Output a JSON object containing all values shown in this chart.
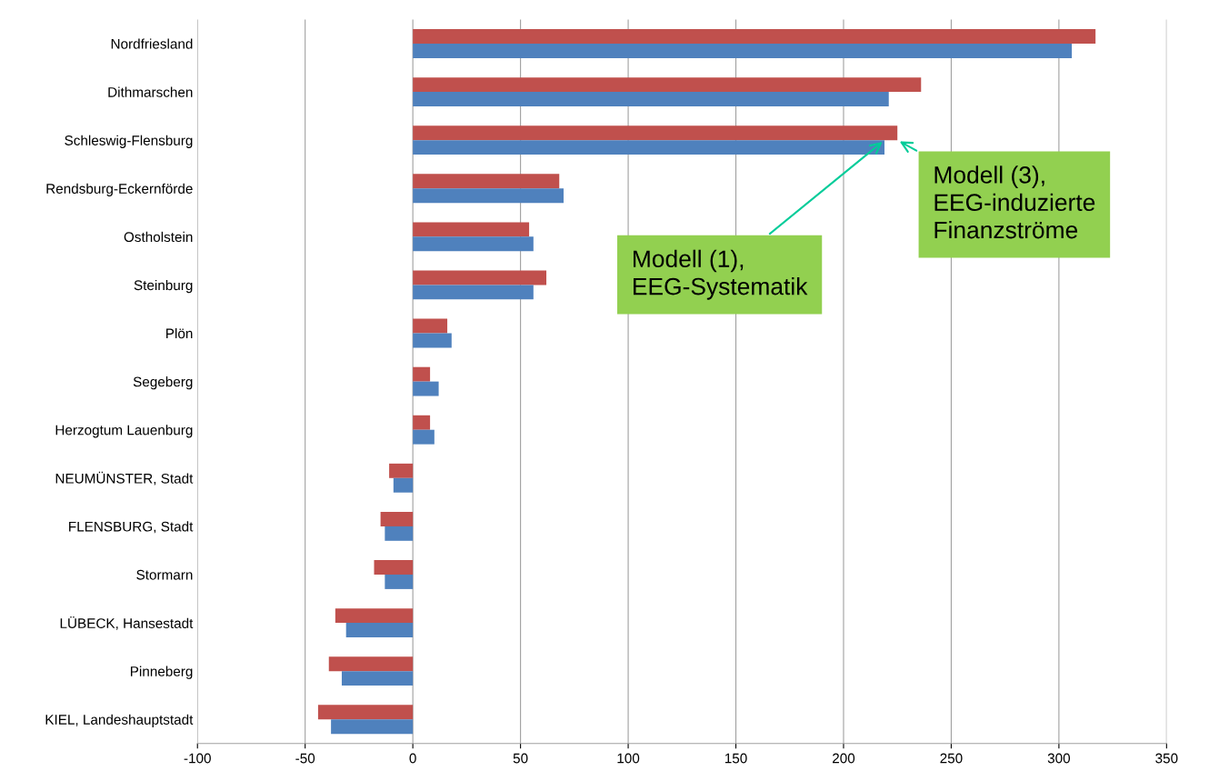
{
  "chart_data": {
    "type": "bar",
    "orientation": "horizontal",
    "categories": [
      "Nordfriesland",
      "Dithmarschen",
      "Schleswig-Flensburg",
      "Rendsburg-Eckernförde",
      "Ostholstein",
      "Steinburg",
      "Plön",
      "Segeberg",
      "Herzogtum Lauenburg",
      "NEUMÜNSTER, Stadt",
      "FLENSBURG, Stadt",
      "Stormarn",
      "LÜBECK, Hansestadt",
      "Pinneberg",
      "KIEL, Landeshauptstadt"
    ],
    "series": [
      {
        "color": "#c0504d",
        "values": [
          317,
          236,
          225,
          68,
          54,
          62,
          16,
          8,
          8,
          -11,
          -15,
          -18,
          -36,
          -39,
          -44
        ]
      },
      {
        "color": "#4f81bd",
        "values": [
          306,
          221,
          219,
          70,
          56,
          56,
          18,
          12,
          10,
          -9,
          -13,
          -13,
          -31,
          -33,
          -38
        ]
      }
    ],
    "xlim": [
      -100,
      350
    ],
    "xticks": [
      -100,
      -50,
      0,
      50,
      100,
      150,
      200,
      250,
      300,
      350
    ],
    "grid": "x",
    "legend": false,
    "annotations": [
      {
        "text": "Modell (1),\nEEG-Systematik",
        "x": 219,
        "y": "Schleswig-Flensburg"
      },
      {
        "text": "Modell (3),\nEEG-induzierte\nFinanzströme",
        "x": 225,
        "y": "Schleswig-Flensburg"
      }
    ]
  }
}
